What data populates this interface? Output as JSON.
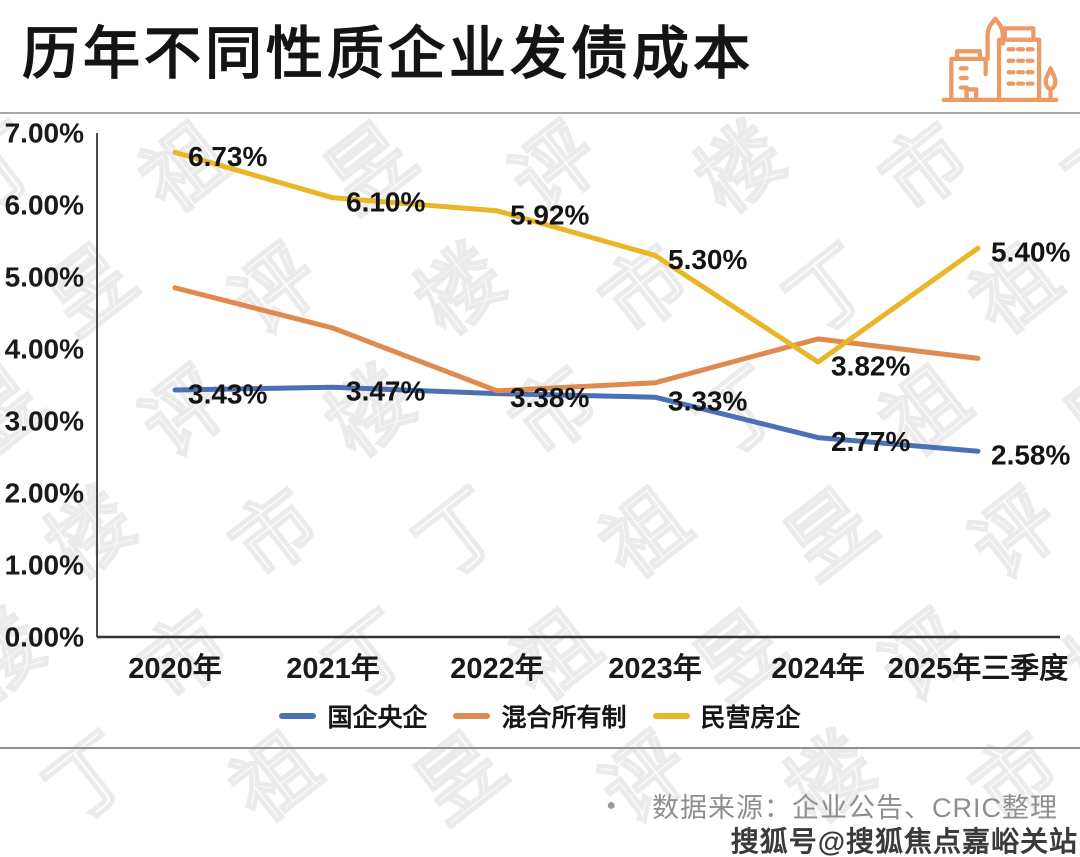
{
  "header": {
    "title": "历年不同性质企业发债成本",
    "icon": "buildings-icon"
  },
  "colors": {
    "icon": "#EC9A66",
    "blue": "#4A71B5",
    "orange": "#DF8A4E",
    "yellow": "#E9B628",
    "text_dark": "#141414",
    "text_gray": "#8f8f8f"
  },
  "chart_data": {
    "type": "line",
    "title": "历年不同性质企业发债成本",
    "x": [
      "2020年",
      "2021年",
      "2022年",
      "2023年",
      "2024年",
      "2025年三季度"
    ],
    "y_ticks": [
      "0.00%",
      "1.00%",
      "2.00%",
      "3.00%",
      "4.00%",
      "5.00%",
      "6.00%",
      "7.00%"
    ],
    "ylim": [
      0,
      7
    ],
    "grid": false,
    "legend_position": "bottom",
    "series": [
      {
        "id": "guoqi-yangqi",
        "name": "国企央企",
        "color": "#4A71B5",
        "values": [
          3.43,
          3.47,
          3.38,
          3.33,
          2.77,
          2.58
        ],
        "labels": [
          "3.43%",
          "3.47%",
          "3.38%",
          "3.33%",
          "2.77%",
          "2.58%"
        ]
      },
      {
        "id": "hunhe-suoyouzhi",
        "name": "混合所有制",
        "color": "#DF8A4E",
        "values": [
          4.85,
          4.29,
          3.42,
          3.53,
          4.14,
          3.87
        ],
        "labels": [
          null,
          null,
          null,
          null,
          null,
          null
        ]
      },
      {
        "id": "minying-fangqi",
        "name": "民营房企",
        "color": "#E9B628",
        "values": [
          6.73,
          6.1,
          5.92,
          5.3,
          3.82,
          5.4
        ],
        "labels": [
          "6.73%",
          "6.10%",
          "5.92%",
          "5.30%",
          "3.82%",
          "5.40%"
        ]
      }
    ]
  },
  "footer": {
    "bullet": "●",
    "source": "数据来源：企业公告、CRIC整理",
    "sohu_watermark": "搜狐号@搜狐焦点嘉峪关站"
  },
  "watermark": {
    "chars": "丁祖昱评楼市"
  }
}
